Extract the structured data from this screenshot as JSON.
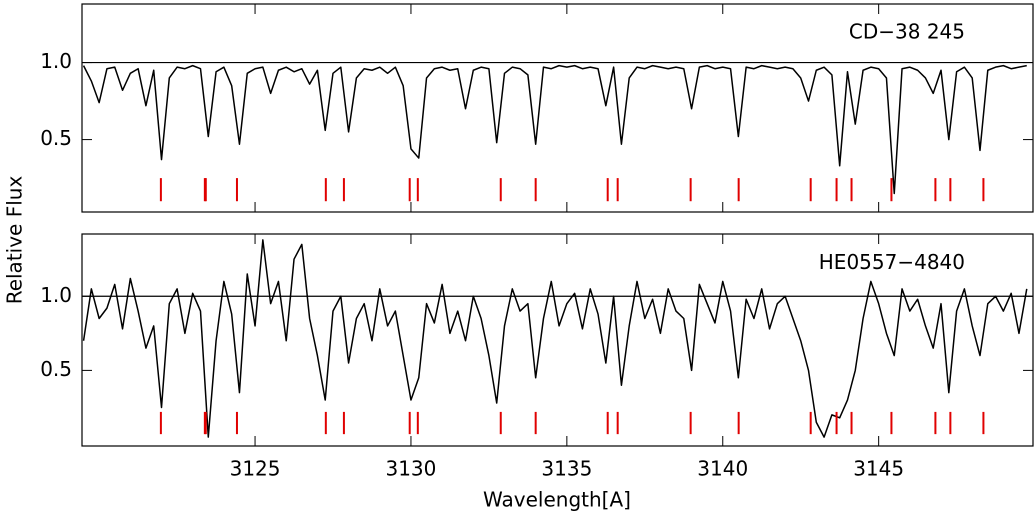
{
  "chart_data": [
    {
      "type": "line",
      "annotation": "CD−38 245",
      "ylabel": "Relative Flux",
      "xlim": [
        3119.45,
        3149.95
      ],
      "xticks": [
        3125,
        3130,
        3135,
        3140,
        3145
      ],
      "ylim": [
        0.03,
        1.38
      ],
      "yticks": [
        0.5,
        {
          "value": 1,
          "label": "1.0"
        }
      ],
      "hline": 1,
      "x": [
        3119.5,
        3119.75,
        3120,
        3120.25,
        3120.5,
        3120.75,
        3121,
        3121.25,
        3121.5,
        3121.75,
        3122,
        3122.25,
        3122.5,
        3122.75,
        3123,
        3123.25,
        3123.5,
        3123.75,
        3124,
        3124.25,
        3124.5,
        3124.75,
        3125,
        3125.25,
        3125.5,
        3125.75,
        3126,
        3126.25,
        3126.5,
        3126.75,
        3127,
        3127.25,
        3127.5,
        3127.75,
        3128,
        3128.25,
        3128.5,
        3128.75,
        3129,
        3129.25,
        3129.5,
        3129.75,
        3130,
        3130.25,
        3130.5,
        3130.75,
        3131,
        3131.25,
        3131.5,
        3131.75,
        3132,
        3132.25,
        3132.5,
        3132.75,
        3133,
        3133.25,
        3133.5,
        3133.75,
        3134,
        3134.25,
        3134.5,
        3134.75,
        3135,
        3135.25,
        3135.5,
        3135.75,
        3136,
        3136.25,
        3136.5,
        3136.75,
        3137,
        3137.25,
        3137.5,
        3137.75,
        3138,
        3138.25,
        3138.5,
        3138.75,
        3139,
        3139.25,
        3139.5,
        3139.75,
        3140,
        3140.25,
        3140.5,
        3140.75,
        3141,
        3141.25,
        3141.5,
        3141.75,
        3142,
        3142.25,
        3142.5,
        3142.75,
        3143,
        3143.25,
        3143.5,
        3143.75,
        3144,
        3144.25,
        3144.5,
        3144.75,
        3145,
        3145.25,
        3145.5,
        3145.75,
        3146,
        3146.25,
        3146.5,
        3146.75,
        3147,
        3147.25,
        3147.5,
        3147.75,
        3148,
        3148.25,
        3148.5,
        3148.75,
        3149,
        3149.25,
        3149.5,
        3149.75
      ],
      "series": [
        {
          "color": "#000000",
          "values": [
            0.98,
            0.88,
            0.74,
            0.96,
            0.97,
            0.82,
            0.93,
            0.96,
            0.72,
            0.95,
            0.37,
            0.9,
            0.97,
            0.96,
            0.98,
            0.96,
            0.52,
            0.94,
            0.97,
            0.85,
            0.47,
            0.93,
            0.96,
            0.97,
            0.8,
            0.95,
            0.97,
            0.94,
            0.96,
            0.86,
            0.95,
            0.56,
            0.93,
            0.97,
            0.55,
            0.9,
            0.96,
            0.95,
            0.97,
            0.93,
            0.97,
            0.85,
            0.44,
            0.38,
            0.9,
            0.96,
            0.97,
            0.95,
            0.96,
            0.7,
            0.95,
            0.97,
            0.96,
            0.48,
            0.93,
            0.97,
            0.96,
            0.92,
            0.47,
            0.97,
            0.96,
            0.98,
            0.97,
            0.98,
            0.96,
            0.97,
            0.96,
            0.72,
            0.97,
            0.47,
            0.9,
            0.97,
            0.96,
            0.98,
            0.97,
            0.96,
            0.97,
            0.96,
            0.7,
            0.97,
            0.98,
            0.96,
            0.97,
            0.96,
            0.52,
            0.97,
            0.96,
            0.98,
            0.97,
            0.96,
            0.97,
            0.96,
            0.9,
            0.75,
            0.95,
            0.97,
            0.92,
            0.33,
            0.94,
            0.6,
            0.95,
            0.97,
            0.96,
            0.9,
            0.15,
            0.96,
            0.97,
            0.95,
            0.9,
            0.8,
            0.95,
            0.5,
            0.94,
            0.97,
            0.9,
            0.43,
            0.95,
            0.97,
            0.98,
            0.96,
            0.97,
            0.98
          ]
        }
      ],
      "line_marks": {
        "color": "#e00000",
        "ymin": 0.1,
        "ymax": 0.25,
        "positions": [
          3121.98,
          3123.39,
          3123.42,
          3124.42,
          3127.27,
          3127.85,
          3129.96,
          3130.22,
          3132.88,
          3134.0,
          3136.31,
          3136.63,
          3138.97,
          3140.51,
          3142.82,
          3143.65,
          3144.13,
          3145.41,
          3146.82,
          3147.3,
          3148.36
        ]
      }
    },
    {
      "type": "line",
      "annotation": "HE0557−4840",
      "xlabel": "Wavelength[A]",
      "xlim": [
        3119.45,
        3149.95
      ],
      "xticks": [
        3125,
        3130,
        3135,
        3140,
        3145
      ],
      "ylim": [
        -0.01,
        1.42
      ],
      "yticks": [
        0.5,
        {
          "value": 1,
          "label": "1.0"
        }
      ],
      "hline": 1,
      "x": [
        3119.5,
        3119.75,
        3120,
        3120.25,
        3120.5,
        3120.75,
        3121,
        3121.25,
        3121.5,
        3121.75,
        3122,
        3122.25,
        3122.5,
        3122.75,
        3123,
        3123.25,
        3123.5,
        3123.75,
        3124,
        3124.25,
        3124.5,
        3124.75,
        3125,
        3125.25,
        3125.5,
        3125.75,
        3126,
        3126.25,
        3126.5,
        3126.75,
        3127,
        3127.25,
        3127.5,
        3127.75,
        3128,
        3128.25,
        3128.5,
        3128.75,
        3129,
        3129.25,
        3129.5,
        3129.75,
        3130,
        3130.25,
        3130.5,
        3130.75,
        3131,
        3131.25,
        3131.5,
        3131.75,
        3132,
        3132.25,
        3132.5,
        3132.75,
        3133,
        3133.25,
        3133.5,
        3133.75,
        3134,
        3134.25,
        3134.5,
        3134.75,
        3135,
        3135.25,
        3135.5,
        3135.75,
        3136,
        3136.25,
        3136.5,
        3136.75,
        3137,
        3137.25,
        3137.5,
        3137.75,
        3138,
        3138.25,
        3138.5,
        3138.75,
        3139,
        3139.25,
        3139.5,
        3139.75,
        3140,
        3140.25,
        3140.5,
        3140.75,
        3141,
        3141.25,
        3141.5,
        3141.75,
        3142,
        3142.25,
        3142.5,
        3142.75,
        3143,
        3143.25,
        3143.5,
        3143.75,
        3144,
        3144.25,
        3144.5,
        3144.75,
        3145,
        3145.25,
        3145.5,
        3145.75,
        3146,
        3146.25,
        3146.5,
        3146.75,
        3147,
        3147.25,
        3147.5,
        3147.75,
        3148,
        3148.25,
        3148.5,
        3148.75,
        3149,
        3149.25,
        3149.5,
        3149.75
      ],
      "series": [
        {
          "color": "#000000",
          "values": [
            0.7,
            1.05,
            0.85,
            0.92,
            1.08,
            0.78,
            1.12,
            0.9,
            0.65,
            0.8,
            0.25,
            0.95,
            1.05,
            0.75,
            1.02,
            0.9,
            0.05,
            0.7,
            1.1,
            0.88,
            0.35,
            1.15,
            0.8,
            1.38,
            0.95,
            1.1,
            0.7,
            1.25,
            1.35,
            0.85,
            0.6,
            0.3,
            0.9,
            1.0,
            0.55,
            0.85,
            0.95,
            0.7,
            1.05,
            0.8,
            0.9,
            0.6,
            0.3,
            0.45,
            0.95,
            0.82,
            1.08,
            0.75,
            0.9,
            0.7,
            1.0,
            0.85,
            0.6,
            0.28,
            0.8,
            1.05,
            0.9,
            0.95,
            0.45,
            0.85,
            1.1,
            0.8,
            0.95,
            1.02,
            0.78,
            1.05,
            0.88,
            0.55,
            1.0,
            0.4,
            0.8,
            1.1,
            0.85,
            0.98,
            0.75,
            1.05,
            0.9,
            0.85,
            0.5,
            1.08,
            0.95,
            0.82,
            1.1,
            0.9,
            0.45,
            0.98,
            0.85,
            1.05,
            0.78,
            0.95,
            1.0,
            0.85,
            0.7,
            0.5,
            0.15,
            0.05,
            0.2,
            0.18,
            0.3,
            0.5,
            0.85,
            1.1,
            0.95,
            0.75,
            0.6,
            1.05,
            0.9,
            0.98,
            0.8,
            0.65,
            0.95,
            0.35,
            0.9,
            1.05,
            0.8,
            0.6,
            0.95,
            1.0,
            0.9,
            1.02,
            0.75,
            1.05
          ]
        }
      ],
      "line_marks": {
        "color": "#e00000",
        "ymin": 0.07,
        "ymax": 0.22,
        "positions": [
          3121.98,
          3123.39,
          3123.42,
          3124.42,
          3127.27,
          3127.85,
          3129.96,
          3130.22,
          3132.88,
          3134.0,
          3136.31,
          3136.63,
          3138.97,
          3140.51,
          3142.82,
          3143.65,
          3144.13,
          3145.41,
          3146.82,
          3147.3,
          3148.36
        ]
      }
    }
  ]
}
